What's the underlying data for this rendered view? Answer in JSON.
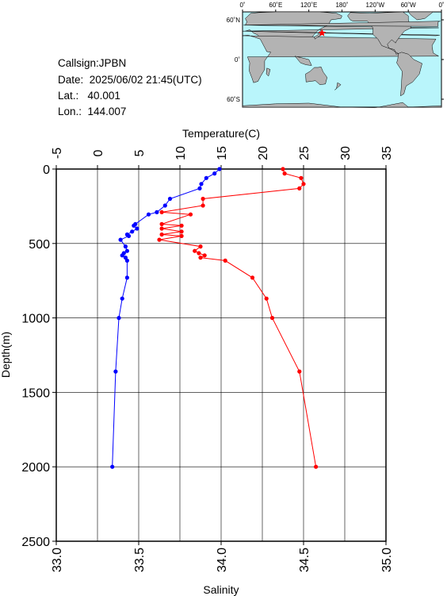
{
  "station": {
    "callsign_label": "Callsign:",
    "callsign": "JPBN",
    "date_label": "Date:",
    "date": "2025/06/02 21:45(UTC)",
    "lat_label": "Lat.:",
    "lat": "40.001",
    "lon_label": "Lon.:",
    "lon": "144.007"
  },
  "map": {
    "lon_ticks": [
      "0˚",
      "60˚E",
      "120˚E",
      "180˚",
      "120˚W",
      "60˚W",
      "0˚"
    ],
    "lat_ticks": [
      "60˚N",
      "0˚",
      "60˚S"
    ],
    "marker": {
      "lon": 144.007,
      "lat": 40.001,
      "symbol": "star"
    },
    "colors": {
      "ocean": "#b9f5fb",
      "land": "#b3b3b3",
      "marker": "#ff0000"
    }
  },
  "chart_data": {
    "type": "line",
    "title": "",
    "y": {
      "label": "Depth(m)",
      "range": [
        0,
        2500
      ],
      "inverted": true,
      "ticks": [
        0,
        500,
        1000,
        1500,
        2000,
        2500
      ]
    },
    "x_top": {
      "label": "Temperature(C)",
      "range": [
        -5,
        35
      ],
      "ticks": [
        -5,
        0,
        5,
        10,
        15,
        20,
        25,
        30,
        35
      ]
    },
    "x_bottom": {
      "label": "Salinity",
      "range": [
        33.0,
        35.0
      ],
      "ticks": [
        "33.0",
        "33.5",
        "34.0",
        "34.5",
        "35.0"
      ]
    },
    "grid": true,
    "series": [
      {
        "axis": "temperature",
        "color": "#ff0000",
        "points": [
          {
            "depth": 0,
            "value": 22.5
          },
          {
            "depth": 30,
            "value": 22.7
          },
          {
            "depth": 60,
            "value": 24.7
          },
          {
            "depth": 100,
            "value": 25.0
          },
          {
            "depth": 130,
            "value": 24.5
          },
          {
            "depth": 200,
            "value": 12.8
          },
          {
            "depth": 245,
            "value": 12.8
          },
          {
            "depth": 290,
            "value": 7.8
          },
          {
            "depth": 305,
            "value": 11.3
          },
          {
            "depth": 370,
            "value": 7.8
          },
          {
            "depth": 380,
            "value": 10.2
          },
          {
            "depth": 400,
            "value": 7.8
          },
          {
            "depth": 420,
            "value": 10.2
          },
          {
            "depth": 440,
            "value": 7.8
          },
          {
            "depth": 450,
            "value": 10.2
          },
          {
            "depth": 475,
            "value": 7.5
          },
          {
            "depth": 520,
            "value": 12.5
          },
          {
            "depth": 550,
            "value": 11.8
          },
          {
            "depth": 565,
            "value": 12.3
          },
          {
            "depth": 580,
            "value": 13.0
          },
          {
            "depth": 595,
            "value": 12.5
          },
          {
            "depth": 615,
            "value": 15.5
          },
          {
            "depth": 730,
            "value": 18.8
          },
          {
            "depth": 870,
            "value": 20.5
          },
          {
            "depth": 1000,
            "value": 21.2
          },
          {
            "depth": 1360,
            "value": 24.5
          },
          {
            "depth": 2000,
            "value": 26.5
          }
        ]
      },
      {
        "axis": "salinity",
        "color": "#0000ff",
        "points": [
          {
            "depth": 0,
            "value": 33.99
          },
          {
            "depth": 30,
            "value": 33.96
          },
          {
            "depth": 60,
            "value": 33.91
          },
          {
            "depth": 100,
            "value": 33.88
          },
          {
            "depth": 130,
            "value": 33.87
          },
          {
            "depth": 200,
            "value": 33.69
          },
          {
            "depth": 245,
            "value": 33.66
          },
          {
            "depth": 290,
            "value": 33.61
          },
          {
            "depth": 305,
            "value": 33.56
          },
          {
            "depth": 370,
            "value": 33.48
          },
          {
            "depth": 380,
            "value": 33.47
          },
          {
            "depth": 400,
            "value": 33.49
          },
          {
            "depth": 420,
            "value": 33.46
          },
          {
            "depth": 440,
            "value": 33.43
          },
          {
            "depth": 450,
            "value": 33.44
          },
          {
            "depth": 475,
            "value": 33.39
          },
          {
            "depth": 520,
            "value": 33.42
          },
          {
            "depth": 550,
            "value": 33.43
          },
          {
            "depth": 565,
            "value": 33.41
          },
          {
            "depth": 580,
            "value": 33.4
          },
          {
            "depth": 595,
            "value": 33.42
          },
          {
            "depth": 615,
            "value": 33.43
          },
          {
            "depth": 730,
            "value": 33.43
          },
          {
            "depth": 870,
            "value": 33.4
          },
          {
            "depth": 1000,
            "value": 33.38
          },
          {
            "depth": 1360,
            "value": 33.36
          },
          {
            "depth": 2000,
            "value": 33.34
          }
        ]
      }
    ]
  }
}
